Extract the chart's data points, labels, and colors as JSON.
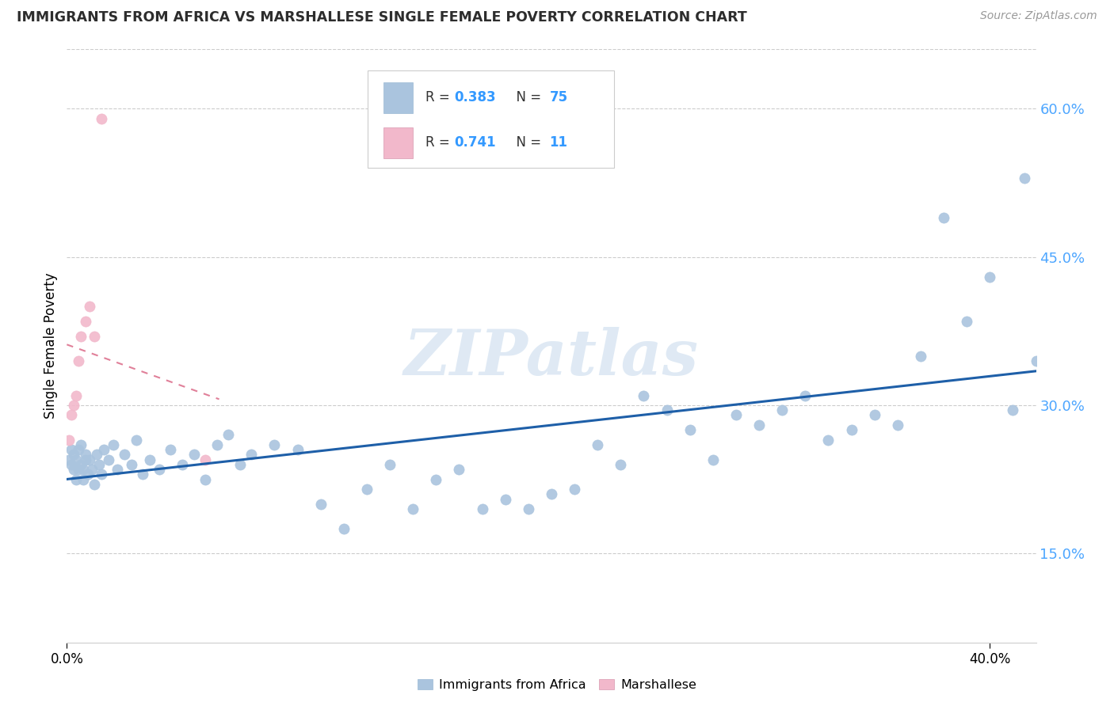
{
  "title": "IMMIGRANTS FROM AFRICA VS MARSHALLESE SINGLE FEMALE POVERTY CORRELATION CHART",
  "source": "Source: ZipAtlas.com",
  "ylabel": "Single Female Poverty",
  "y_ticks": [
    0.15,
    0.3,
    0.45,
    0.6
  ],
  "y_tick_labels": [
    "15.0%",
    "30.0%",
    "45.0%",
    "60.0%"
  ],
  "xlim": [
    0.0,
    0.42
  ],
  "ylim": [
    0.06,
    0.66
  ],
  "africa_R": 0.383,
  "africa_N": 75,
  "marshallese_R": 0.741,
  "marshallese_N": 11,
  "africa_color": "#aac4de",
  "marshallese_color": "#f2b8cb",
  "africa_line_color": "#1e5fa8",
  "marshallese_line_color": "#d96080",
  "watermark": "ZIPatlas",
  "legend_label_1": "Immigrants from Africa",
  "legend_label_2": "Marshallese",
  "africa_x": [
    0.001,
    0.002,
    0.002,
    0.003,
    0.003,
    0.004,
    0.004,
    0.005,
    0.005,
    0.006,
    0.006,
    0.007,
    0.007,
    0.008,
    0.008,
    0.009,
    0.01,
    0.011,
    0.012,
    0.013,
    0.014,
    0.015,
    0.016,
    0.018,
    0.02,
    0.022,
    0.025,
    0.028,
    0.03,
    0.033,
    0.036,
    0.04,
    0.045,
    0.05,
    0.055,
    0.06,
    0.065,
    0.07,
    0.075,
    0.08,
    0.09,
    0.1,
    0.11,
    0.12,
    0.13,
    0.14,
    0.15,
    0.16,
    0.17,
    0.18,
    0.19,
    0.2,
    0.21,
    0.22,
    0.23,
    0.24,
    0.25,
    0.26,
    0.27,
    0.28,
    0.29,
    0.3,
    0.31,
    0.32,
    0.33,
    0.34,
    0.35,
    0.36,
    0.37,
    0.38,
    0.39,
    0.4,
    0.41,
    0.415,
    0.42
  ],
  "africa_y": [
    0.245,
    0.24,
    0.255,
    0.235,
    0.25,
    0.225,
    0.245,
    0.235,
    0.255,
    0.24,
    0.26,
    0.225,
    0.235,
    0.245,
    0.25,
    0.23,
    0.245,
    0.235,
    0.22,
    0.25,
    0.24,
    0.23,
    0.255,
    0.245,
    0.26,
    0.235,
    0.25,
    0.24,
    0.265,
    0.23,
    0.245,
    0.235,
    0.255,
    0.24,
    0.25,
    0.225,
    0.26,
    0.27,
    0.24,
    0.25,
    0.26,
    0.255,
    0.2,
    0.175,
    0.215,
    0.24,
    0.195,
    0.225,
    0.235,
    0.195,
    0.205,
    0.195,
    0.21,
    0.215,
    0.26,
    0.24,
    0.31,
    0.295,
    0.275,
    0.245,
    0.29,
    0.28,
    0.295,
    0.31,
    0.265,
    0.275,
    0.29,
    0.28,
    0.35,
    0.49,
    0.385,
    0.43,
    0.295,
    0.53,
    0.345
  ],
  "marsh_x": [
    0.001,
    0.002,
    0.003,
    0.004,
    0.005,
    0.006,
    0.008,
    0.01,
    0.012,
    0.015,
    0.06
  ],
  "marsh_y": [
    0.265,
    0.29,
    0.3,
    0.31,
    0.345,
    0.37,
    0.385,
    0.4,
    0.37,
    0.59,
    0.245
  ],
  "grid_color": "#cccccc",
  "tick_color": "#4da6ff",
  "title_color": "#2d2d2d",
  "source_color": "#999999"
}
